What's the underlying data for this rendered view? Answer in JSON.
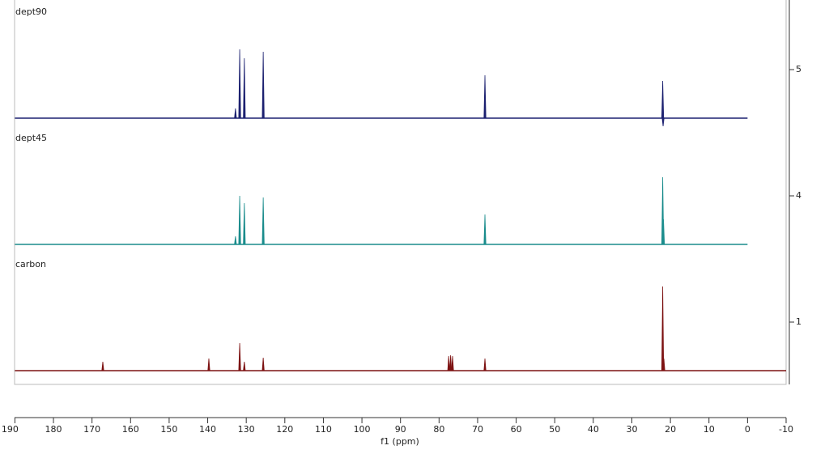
{
  "chart_data": {
    "type": "nmr-stack",
    "x_label": "f1 (ppm)",
    "xlim": [
      190,
      -10
    ],
    "xticks": [
      190,
      180,
      170,
      160,
      150,
      140,
      130,
      120,
      110,
      100,
      90,
      80,
      70,
      60,
      50,
      40,
      30,
      20,
      10,
      0,
      -10
    ],
    "series": [
      {
        "name": "dept90",
        "trace": "5",
        "color": "#1c2170",
        "xlim": [
          190,
          0
        ],
        "peaks_ppm": [
          132.8,
          131.7,
          130.5,
          125.6,
          68.1,
          22.0,
          21.9
        ],
        "values": [
          12,
          85,
          74,
          82,
          53,
          46,
          -10
        ]
      },
      {
        "name": "dept45",
        "trace": "4",
        "color": "#1a8c8c",
        "xlim": [
          190,
          0
        ],
        "peaks_ppm": [
          132.8,
          131.7,
          130.5,
          125.6,
          68.1,
          22.0,
          21.8
        ],
        "values": [
          10,
          60,
          51,
          58,
          37,
          83,
          31
        ]
      },
      {
        "name": "carbon",
        "trace": "1",
        "color": "#7d1212",
        "xlim": [
          190,
          -10
        ],
        "peaks_ppm": [
          167.2,
          139.7,
          131.7,
          130.5,
          125.6,
          77.5,
          77.0,
          76.5,
          68.1,
          22.0,
          21.7
        ],
        "values": [
          11,
          15,
          34,
          11,
          16,
          18,
          19,
          18,
          15,
          104,
          15
        ]
      }
    ]
  }
}
